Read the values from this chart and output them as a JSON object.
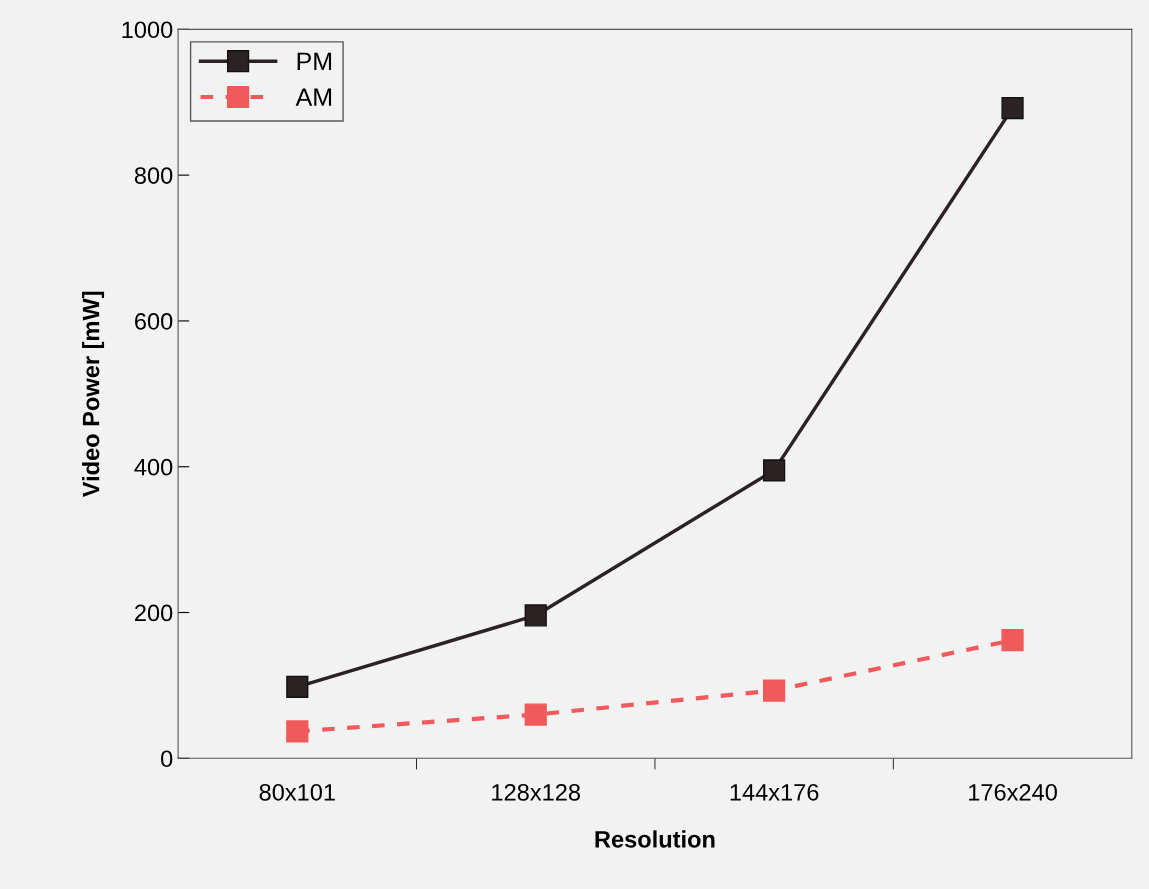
{
  "chart_data": {
    "type": "line",
    "xlabel": "Resolution",
    "ylabel": "Video Power [mW]",
    "categories": [
      "80x101",
      "128x128",
      "144x176",
      "176x240"
    ],
    "series": [
      {
        "name": "PM",
        "color": "#2b2323",
        "values": [
          98,
          196,
          395,
          892
        ],
        "line_style": "solid"
      },
      {
        "name": "AM",
        "color": "#f05a5a",
        "values": [
          37,
          60,
          93,
          162
        ],
        "line_style": "dashed"
      }
    ],
    "ylim": [
      0,
      1000
    ],
    "yticks": [
      0,
      200,
      400,
      600,
      800,
      1000
    ],
    "marker": "square",
    "grid": false,
    "legend": "top left"
  }
}
